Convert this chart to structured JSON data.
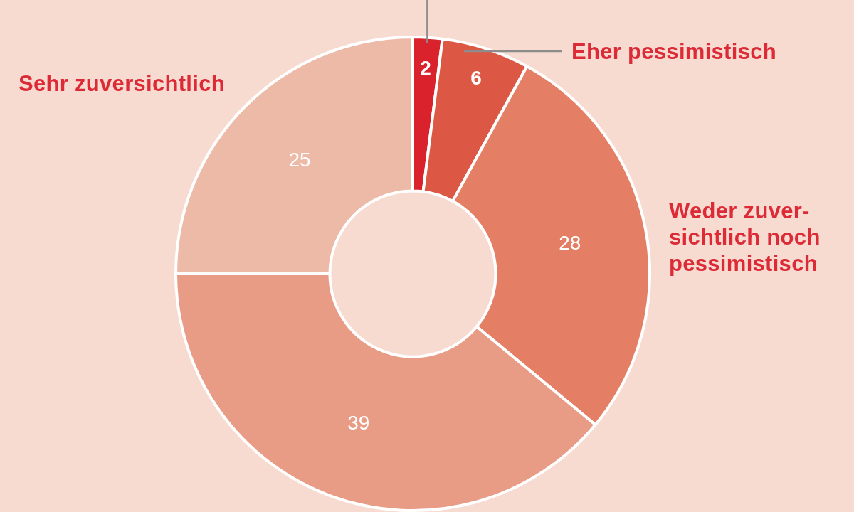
{
  "chart_data": {
    "type": "donut",
    "categories": [
      null,
      "Eher pessimistisch",
      "Weder zuver-sichtlich noch pessimistisch",
      null,
      "Sehr zuversichtlich"
    ],
    "values": [
      2,
      6,
      28,
      39,
      25
    ],
    "colors": [
      "#d9222b",
      "#dc5844",
      "#e47f66",
      "#e89c85",
      "#edbaa8"
    ],
    "data_labels": true
  }
}
